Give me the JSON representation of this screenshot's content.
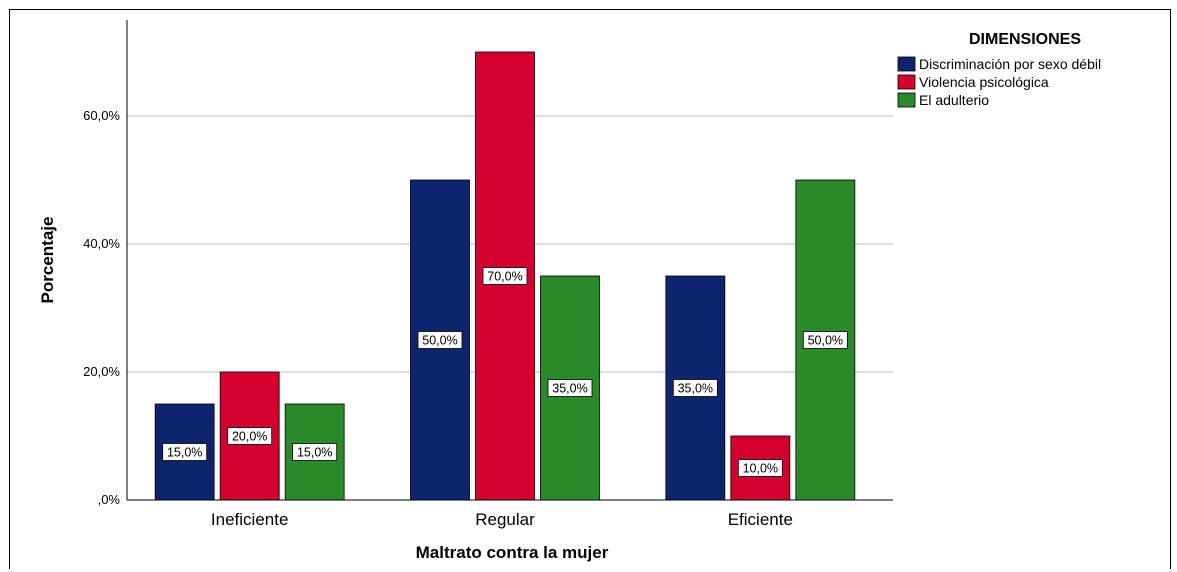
{
  "chart_data": {
    "type": "bar",
    "categories": [
      "Ineficiente",
      "Regular",
      "Eficiente"
    ],
    "series": [
      {
        "name": "Discriminación por sexo débil",
        "color": "#0d246e",
        "values": [
          15,
          50,
          35
        ],
        "labels": [
          "15,0%",
          "50,0%",
          "35,0%"
        ]
      },
      {
        "name": "Violencia psicológica",
        "color": "#d6002f",
        "values": [
          20,
          70,
          10
        ],
        "labels": [
          "20,0%",
          "70,0%",
          "10,0%"
        ]
      },
      {
        "name": "El adulterio",
        "color": "#2a8a2a",
        "values": [
          15,
          35,
          50
        ],
        "labels": [
          "15,0%",
          "35,0%",
          "50,0%"
        ]
      }
    ],
    "xlabel": "Maltrato contra la mujer",
    "ylabel": "Porcentaje",
    "ylim": [
      0,
      75
    ],
    "yticks": [
      0,
      20,
      40,
      60
    ],
    "ytick_labels": [
      ",0%",
      "20,0%",
      "40,0%",
      "60,0%"
    ],
    "grid": true,
    "legend_title": "DIMENSIONES",
    "legend_position": "top-right"
  }
}
